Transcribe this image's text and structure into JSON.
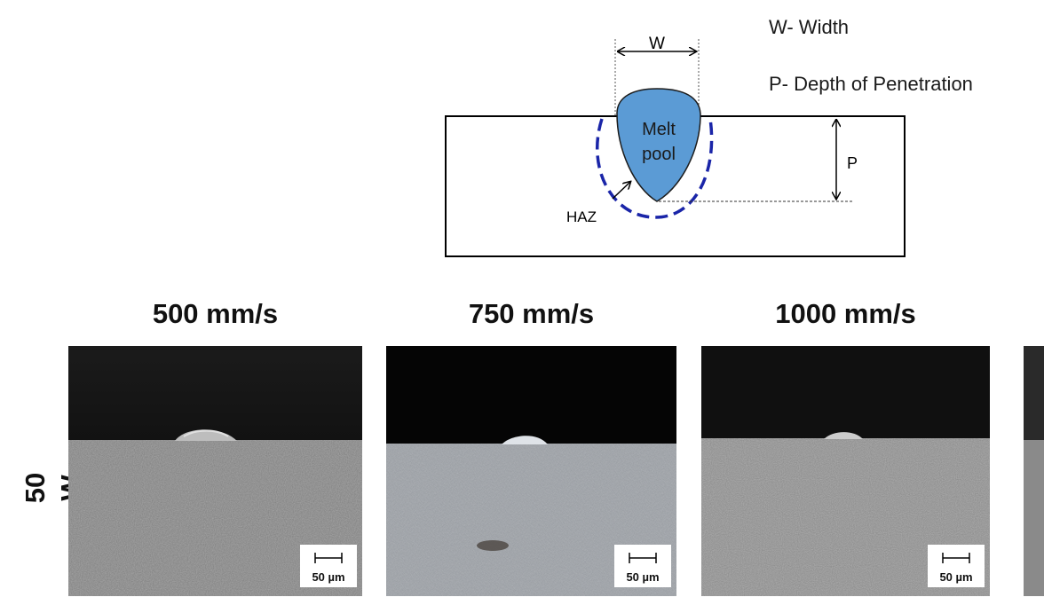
{
  "schematic": {
    "width_symbol": "W",
    "depth_symbol": "P",
    "melt_pool_line1": "Melt",
    "melt_pool_line2": "pool",
    "haz_label": "HAZ",
    "colors": {
      "melt_pool": "#5b9bd5",
      "haz_boundary": "#1a25a8",
      "outline": "#000000"
    }
  },
  "legend": {
    "width": "W- Width",
    "depth": "P- Depth of Penetration"
  },
  "row_label": "50 W",
  "panels": [
    {
      "speed": "500 mm/s",
      "scale_label": "50 µm",
      "bead": "medium"
    },
    {
      "speed": "750 mm/s",
      "scale_label": "50 µm",
      "bead": "small"
    },
    {
      "speed": "1000 mm/s",
      "scale_label": "50 µm",
      "bead": "small"
    }
  ]
}
